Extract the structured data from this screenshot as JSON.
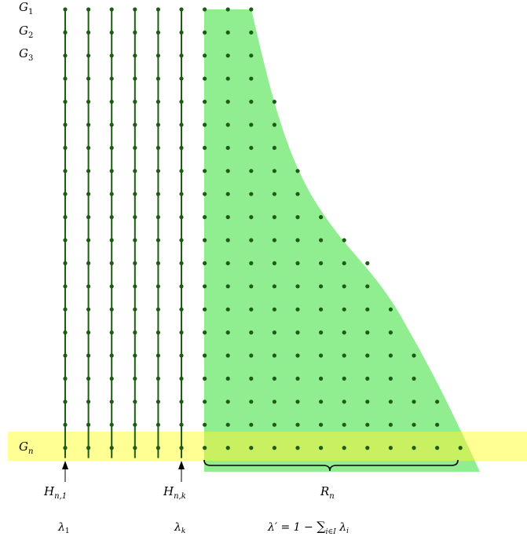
{
  "row_labels": {
    "g1": {
      "base": "G",
      "sub": "1"
    },
    "g2": {
      "base": "G",
      "sub": "2"
    },
    "g3": {
      "base": "G",
      "sub": "3"
    },
    "gn": {
      "base": "G",
      "sub": "n"
    }
  },
  "column_labels": {
    "h_n1": {
      "base": "H",
      "sub": "n,1"
    },
    "h_nk": {
      "base": "H",
      "sub": "n,k"
    },
    "r_n": {
      "base": "R",
      "sub": "n"
    }
  },
  "weight_labels": {
    "lambda_1": {
      "base": "λ",
      "sub": "1"
    },
    "lambda_k": {
      "base": "λ",
      "sub": "k"
    },
    "lambda_prime": {
      "lhs": "λ′ = 1 − ",
      "sum": "∑",
      "sum_sub": "i∈I",
      "term": " λ",
      "term_sub": "i"
    }
  },
  "colors": {
    "line": "#1e5b14",
    "dot": "#1e5b14",
    "green_region": "#90ee90",
    "yellow_band": "#ffff80",
    "overlap": "#c8f060"
  },
  "structure": {
    "rows": 20,
    "vertical_lines": 6,
    "region_row_lengths": [
      3,
      3,
      3,
      3,
      4,
      4,
      4,
      5,
      5,
      6,
      7,
      8,
      8,
      9,
      9,
      10,
      10,
      11,
      11,
      12
    ]
  }
}
